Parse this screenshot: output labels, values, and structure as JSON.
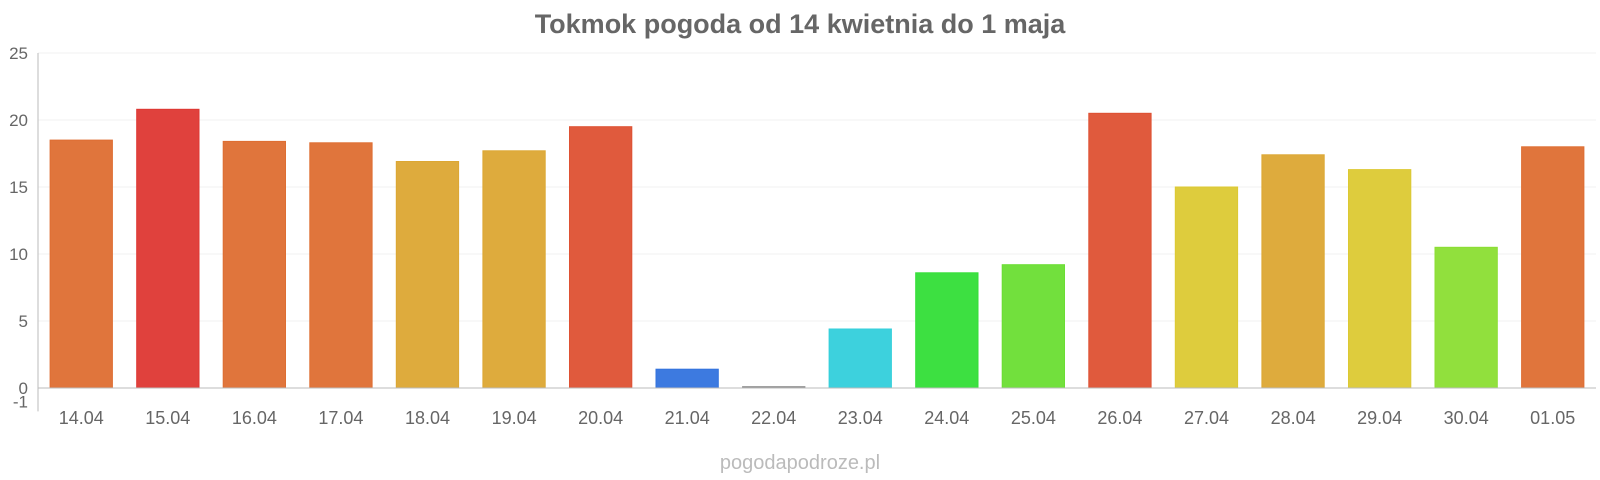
{
  "chart_data": {
    "type": "bar",
    "title": "Tokmok pogoda od 14 kwietnia do 1 maja",
    "xlabel": "",
    "ylabel": "",
    "ylim": [
      -1,
      25
    ],
    "yticks": [
      -1,
      0,
      5,
      10,
      15,
      20,
      25
    ],
    "grid": true,
    "categories": [
      "14.04",
      "15.04",
      "16.04",
      "17.04",
      "18.04",
      "19.04",
      "20.04",
      "21.04",
      "22.04",
      "23.04",
      "24.04",
      "25.04",
      "26.04",
      "27.04",
      "28.04",
      "29.04",
      "30.04",
      "01.05"
    ],
    "values": [
      18.5,
      20.8,
      18.4,
      18.3,
      16.9,
      17.7,
      19.5,
      1.4,
      0.1,
      4.4,
      8.6,
      9.2,
      20.5,
      15.0,
      17.4,
      16.3,
      10.5,
      18.0
    ],
    "colors": [
      "#de6e32",
      "#de3733",
      "#de6e32",
      "#de6e32",
      "#dca733",
      "#dca733",
      "#de5133",
      "#3373de",
      "#8a8a8a",
      "#33cfdb",
      "#33de37",
      "#6ade33",
      "#de5133",
      "#dcc933",
      "#dca733",
      "#dcc933",
      "#8bde33",
      "#de6e32"
    ]
  },
  "watermark": "pogodapodroze.pl"
}
